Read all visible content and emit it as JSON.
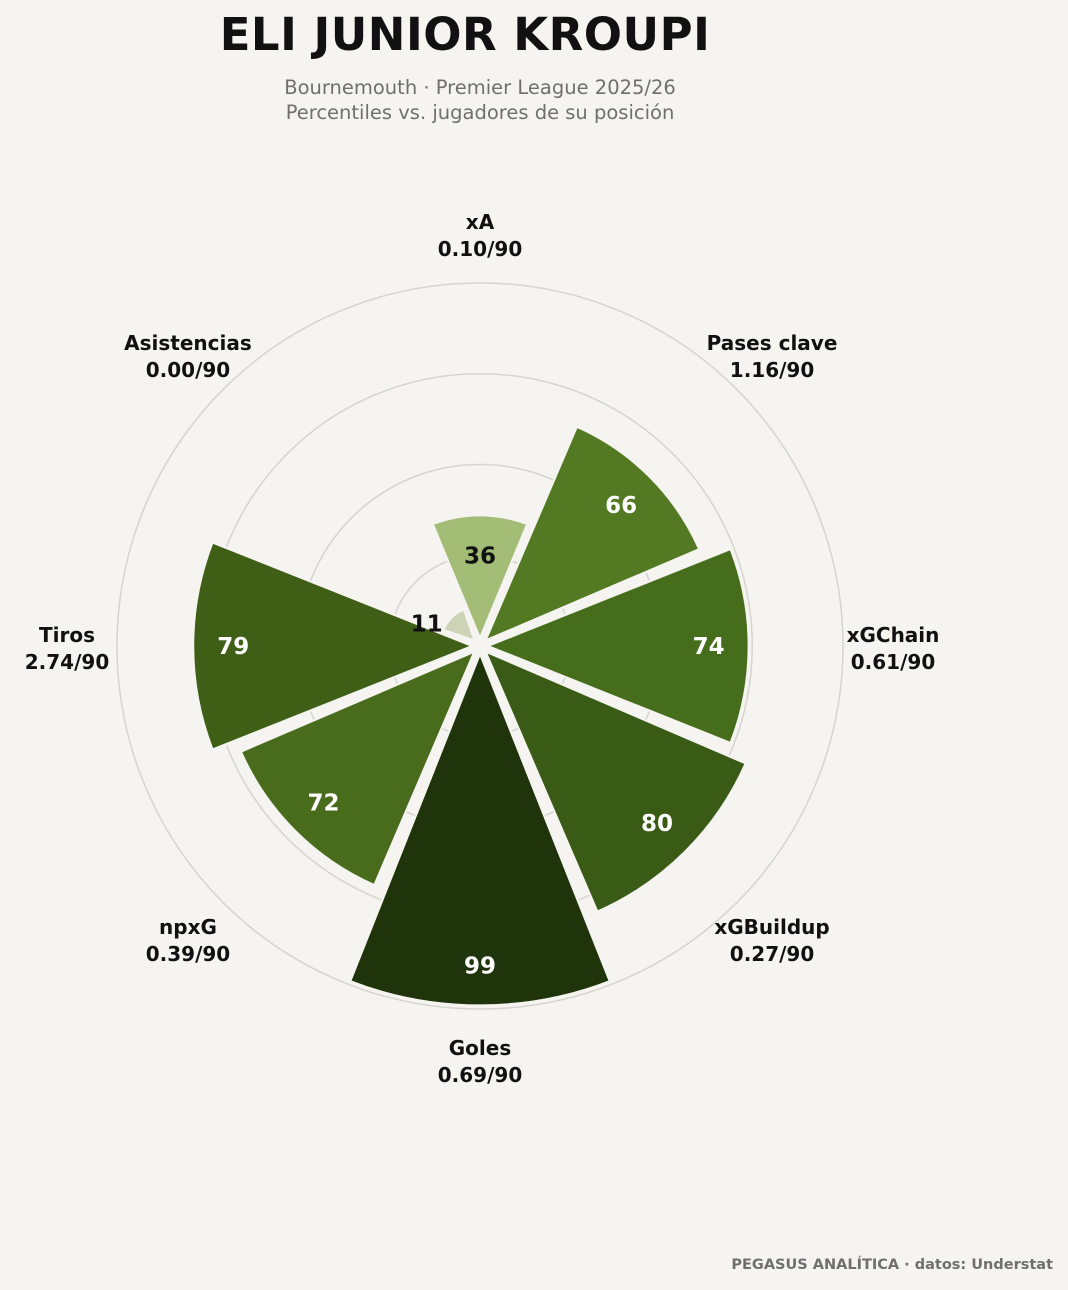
{
  "title": "ELI JUNIOR KROUPI",
  "subtitle_line1": "Bournemouth · Premier League 2025/26",
  "subtitle_line2": "Percentiles vs. jugadores de su posición",
  "footer": "PEGASUS ANALÍTICA · datos: Understat",
  "chart_data": {
    "type": "polar-bar",
    "rlim": [
      0,
      100
    ],
    "grid": true,
    "categories": [
      "xA",
      "Pases clave",
      "xGChain",
      "xGBuildup",
      "Goles",
      "npxG",
      "Tiros",
      "Asistencias"
    ],
    "per90": [
      "0.10/90",
      "1.16/90",
      "0.61/90",
      "0.27/90",
      "0.69/90",
      "0.39/90",
      "2.74/90",
      "0.00/90"
    ],
    "values": [
      36,
      66,
      74,
      80,
      99,
      72,
      79,
      11
    ],
    "colors": [
      "#a3bc76",
      "#537a22",
      "#466d1c",
      "#395b15",
      "#1f340b",
      "#486c1c",
      "#3f5f17",
      "#cdd3b6"
    ],
    "value_text_colors": [
      "#111111",
      "#ffffff",
      "#ffffff",
      "#ffffff",
      "#ffffff",
      "#ffffff",
      "#ffffff",
      "#111111"
    ]
  }
}
